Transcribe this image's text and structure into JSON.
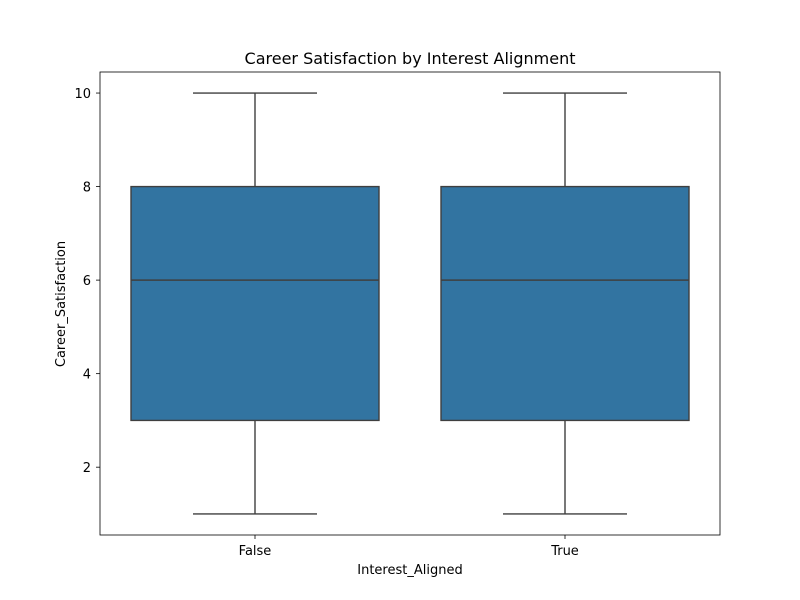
{
  "chart_data": {
    "type": "box",
    "title": "Career Satisfaction by Interest Alignment",
    "xlabel": "Interest_Aligned",
    "ylabel": "Career_Satisfaction",
    "categories": [
      "False",
      "True"
    ],
    "boxes": [
      {
        "category": "False",
        "whisker_low": 1,
        "q1": 3,
        "median": 6,
        "q3": 8,
        "whisker_high": 10
      },
      {
        "category": "True",
        "whisker_low": 1,
        "q1": 3,
        "median": 6,
        "q3": 8,
        "whisker_high": 10
      }
    ],
    "ylim": [
      0.55,
      10.45
    ],
    "yticks": [
      2,
      4,
      6,
      8,
      10
    ],
    "grid": false,
    "box_color": "#3274a1",
    "line_color": "#3f3f3f"
  }
}
